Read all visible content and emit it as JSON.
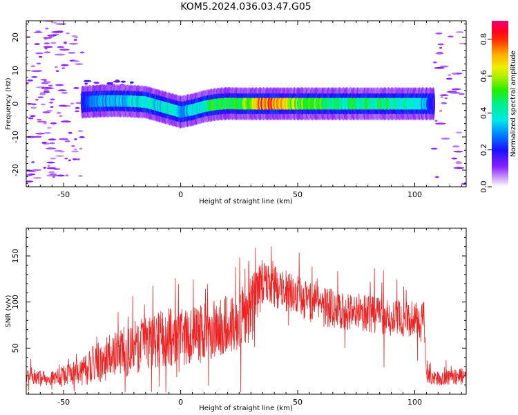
{
  "title": "KOM5.2024.036.03.47.G05",
  "chart_data": [
    {
      "type": "heatmap",
      "description_of_pixels": "spectrogram",
      "xlabel": "Height of straight line (km)",
      "ylabel": "Frequency (Hz)",
      "xlim": [
        -66,
        122
      ],
      "ylim": [
        -25,
        25
      ],
      "xticks": [
        -50,
        0,
        50,
        100
      ],
      "yticks": [
        -20,
        -10,
        0,
        10,
        20
      ],
      "colorbar": {
        "label": "Normalized spectral amplitude",
        "range": [
          0,
          0.9
        ],
        "ticks": [
          0.0,
          0.2,
          0.4,
          0.6,
          0.8
        ],
        "colormap": "rainbow (purple → blue → cyan → green → yellow → red → magenta)"
      },
      "ridge": {
        "x": [
          -42,
          -35,
          -28,
          -22,
          -15,
          -10,
          -5,
          0,
          5,
          10,
          15,
          20,
          25,
          35,
          50,
          70,
          90,
          105,
          108
        ],
        "freq": [
          0.5,
          0.8,
          0.9,
          0.8,
          0.5,
          -0.5,
          -1.5,
          -2.5,
          -1.8,
          -0.8,
          -0.2,
          0.1,
          0.0,
          0.0,
          0.0,
          0.0,
          0.0,
          0.0,
          0.0
        ],
        "amplitude": [
          0.2,
          0.3,
          0.3,
          0.35,
          0.4,
          0.35,
          0.4,
          0.3,
          0.35,
          0.4,
          0.5,
          0.5,
          0.45,
          0.8,
          0.55,
          0.45,
          0.45,
          0.3,
          0.15
        ]
      },
      "grid": false
    },
    {
      "type": "line",
      "xlabel": "Height of straight line (km)",
      "ylabel": "SNR (v/v)",
      "xlim": [
        -66,
        122
      ],
      "ylim": [
        0,
        180
      ],
      "xticks": [
        -50,
        0,
        50,
        100
      ],
      "yticks": [
        50,
        100,
        150
      ],
      "series": [
        {
          "color": "#ee2222",
          "envelope_x": [
            -66,
            -55,
            -45,
            -35,
            -25,
            -15,
            -5,
            5,
            15,
            25,
            30,
            35,
            45,
            55,
            65,
            75,
            85,
            95,
            104,
            105,
            110,
            122
          ],
          "envelope_mean": [
            18,
            17,
            22,
            35,
            45,
            55,
            62,
            65,
            70,
            82,
            90,
            122,
            112,
            100,
            92,
            90,
            85,
            82,
            80,
            20,
            17,
            20
          ],
          "envelope_range": [
            10,
            10,
            18,
            28,
            35,
            38,
            40,
            40,
            40,
            42,
            48,
            30,
            28,
            28,
            28,
            26,
            25,
            25,
            24,
            10,
            10,
            12
          ]
        }
      ],
      "grid": false
    }
  ]
}
